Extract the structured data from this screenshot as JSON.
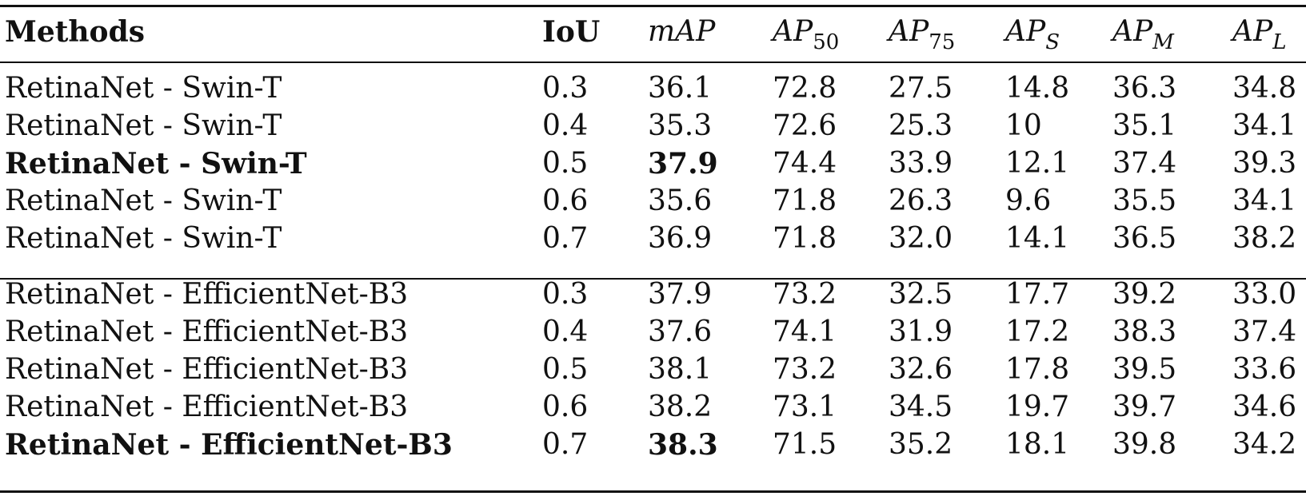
{
  "table": {
    "headers": {
      "method": "Methods",
      "iou": "IoU",
      "map": "mAP",
      "ap50_base": "AP",
      "ap50_sub": "50",
      "ap75_base": "AP",
      "ap75_sub": "75",
      "aps_base": "AP",
      "aps_sub": "S",
      "apm_base": "AP",
      "apm_sub": "M",
      "apl_base": "AP",
      "apl_sub": "L"
    },
    "rows": [
      {
        "method": "RetinaNet - Swin-T",
        "iou": "0.3",
        "map": "36.1",
        "ap50": "72.8",
        "ap75": "27.5",
        "aps": "14.8",
        "apm": "36.3",
        "apl": "34.8"
      },
      {
        "method": "RetinaNet - Swin-T",
        "iou": "0.4",
        "map": "35.3",
        "ap50": "72.6",
        "ap75": "25.3",
        "aps": "10",
        "apm": "35.1",
        "apl": "34.1"
      },
      {
        "method": "RetinaNet - Swin-T",
        "iou": "0.5",
        "map": "37.9",
        "ap50": "74.4",
        "ap75": "33.9",
        "aps": "12.1",
        "apm": "37.4",
        "apl": "39.3"
      },
      {
        "method": "RetinaNet - Swin-T",
        "iou": "0.6",
        "map": "35.6",
        "ap50": "71.8",
        "ap75": "26.3",
        "aps": "9.6",
        "apm": "35.5",
        "apl": "34.1"
      },
      {
        "method": "RetinaNet - Swin-T",
        "iou": "0.7",
        "map": "36.9",
        "ap50": "71.8",
        "ap75": "32.0",
        "aps": "14.1",
        "apm": "36.5",
        "apl": "38.2"
      },
      {
        "method": "RetinaNet - EfficientNet-B3",
        "iou": "0.3",
        "map": "37.9",
        "ap50": "73.2",
        "ap75": "32.5",
        "aps": "17.7",
        "apm": "39.2",
        "apl": "33.0"
      },
      {
        "method": "RetinaNet - EfficientNet-B3",
        "iou": "0.4",
        "map": "37.6",
        "ap50": "74.1",
        "ap75": "31.9",
        "aps": "17.2",
        "apm": "38.3",
        "apl": "37.4"
      },
      {
        "method": "RetinaNet - EfficientNet-B3",
        "iou": "0.5",
        "map": "38.1",
        "ap50": "73.2",
        "ap75": "32.6",
        "aps": "17.8",
        "apm": "39.5",
        "apl": "33.6"
      },
      {
        "method": "RetinaNet - EfficientNet-B3",
        "iou": "0.6",
        "map": "38.2",
        "ap50": "73.1",
        "ap75": "34.5",
        "aps": "19.7",
        "apm": "39.7",
        "apl": "34.6"
      },
      {
        "method": "RetinaNet - EfficientNet-B3",
        "iou": "0.7",
        "map": "38.3",
        "ap50": "71.5",
        "ap75": "35.2",
        "aps": "18.1",
        "apm": "39.8",
        "apl": "34.2"
      }
    ]
  }
}
